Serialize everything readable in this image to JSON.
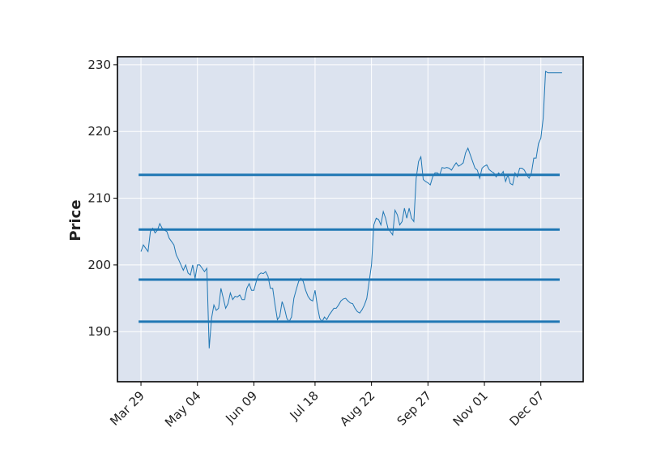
{
  "chart_data": {
    "type": "line",
    "title": "",
    "xlabel": "",
    "ylabel": "Price",
    "ylim": [
      182.5,
      231.2
    ],
    "y_ticks": [
      190,
      200,
      210,
      220,
      230
    ],
    "x_tick_labels": [
      "Mar 29",
      "May 04",
      "Jun 09",
      "Jul 18",
      "Aug 22",
      "Sep 27",
      "Nov 01",
      "Dec 07"
    ],
    "x_tick_index": [
      0,
      24,
      48,
      74,
      98,
      122,
      146,
      170
    ],
    "x_range_index": [
      -10,
      188
    ],
    "grid": true,
    "legend": "none",
    "colors": {
      "background": "#dce3ef",
      "line": "#1f77b4",
      "grid": "#ffffff",
      "frame": "#000000"
    },
    "horizontal_lines": [
      {
        "y": 213.5,
        "x_from_index": -1,
        "x_to_index": 178
      },
      {
        "y": 205.3,
        "x_from_index": -1,
        "x_to_index": 178
      },
      {
        "y": 197.8,
        "x_from_index": -1,
        "x_to_index": 178
      },
      {
        "y": 191.5,
        "x_from_index": -1,
        "x_to_index": 178
      }
    ],
    "series": [
      {
        "values": [
          202.0,
          203.0,
          202.5,
          202.0,
          205.0,
          205.5,
          204.8,
          205.2,
          206.2,
          205.5,
          205.2,
          205.0,
          204.0,
          203.5,
          203.0,
          201.5,
          200.8,
          200.0,
          199.2,
          200.0,
          198.8,
          198.5,
          200.0,
          198.0,
          200.0,
          200.0,
          199.5,
          199.0,
          199.5,
          187.5,
          192.0,
          194.0,
          193.2,
          193.5,
          196.5,
          195.0,
          193.5,
          194.2,
          195.8,
          194.8,
          195.3,
          195.2,
          195.5,
          194.8,
          194.8,
          196.5,
          197.2,
          196.2,
          196.2,
          197.5,
          198.5,
          198.8,
          198.7,
          199.0,
          198.3,
          196.5,
          196.5,
          194.0,
          191.8,
          192.3,
          194.5,
          193.5,
          192.0,
          191.5,
          192.2,
          195.0,
          196.3,
          197.5,
          198.0,
          197.5,
          196.2,
          195.3,
          194.8,
          194.6,
          196.2,
          193.8,
          192.0,
          191.5,
          192.2,
          191.8,
          192.5,
          193.0,
          193.5,
          193.5,
          194.0,
          194.6,
          194.9,
          195.0,
          194.6,
          194.3,
          194.2,
          193.5,
          193.0,
          192.8,
          193.3,
          194.0,
          195.0,
          197.5,
          200.0,
          206.0,
          207.0,
          206.8,
          206.0,
          208.0,
          207.0,
          205.5,
          205.0,
          204.5,
          208.2,
          207.5,
          206.0,
          206.5,
          208.5,
          207.0,
          208.5,
          207.0,
          206.5,
          213.0,
          215.5,
          216.2,
          212.8,
          212.5,
          212.3,
          212.0,
          213.2,
          213.8,
          213.8,
          213.5,
          214.6,
          214.5,
          214.6,
          214.5,
          214.2,
          214.8,
          215.3,
          214.8,
          215.0,
          215.3,
          216.8,
          217.5,
          216.5,
          215.5,
          214.5,
          214.2,
          213.0,
          214.5,
          214.8,
          215.0,
          214.3,
          214.0,
          213.8,
          213.2,
          213.8,
          213.5,
          214.0,
          212.5,
          213.5,
          212.2,
          212.0,
          213.8,
          213.2,
          214.5,
          214.5,
          214.2,
          213.5,
          213.0,
          213.8,
          216.0,
          216.0,
          218.2,
          219.0,
          222.0,
          229.0,
          228.8,
          228.8,
          228.8,
          228.8,
          228.8,
          228.8,
          228.8
        ]
      }
    ]
  }
}
